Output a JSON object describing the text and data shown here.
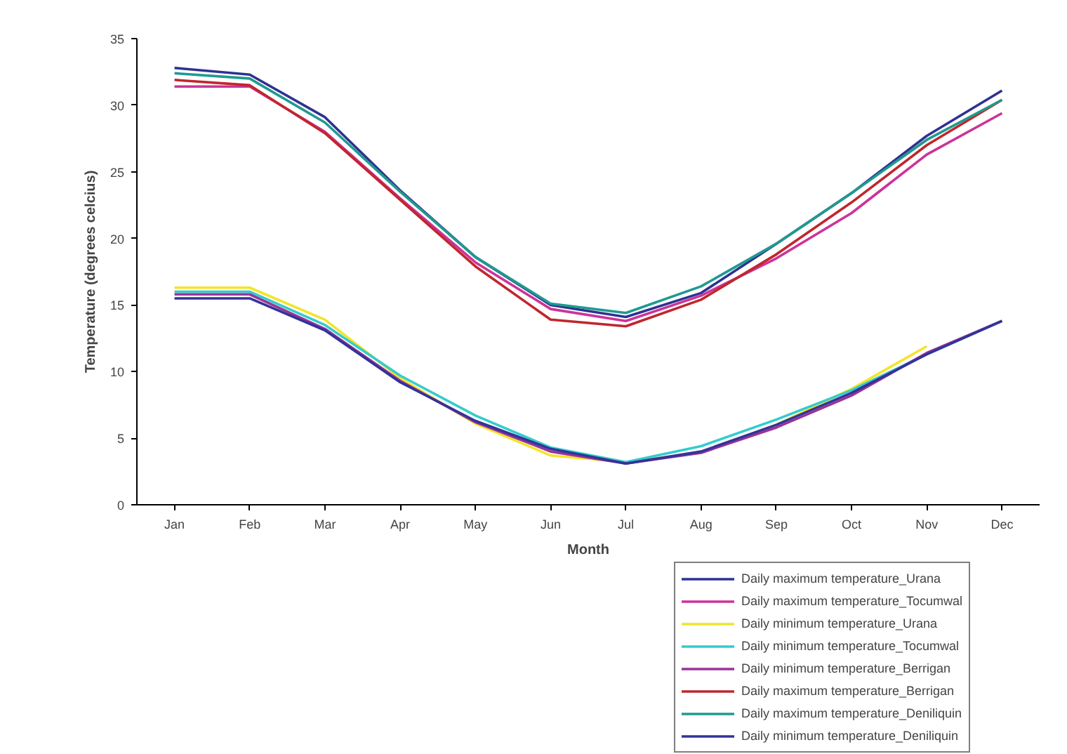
{
  "chart_data": {
    "type": "line",
    "xlabel": "Month",
    "ylabel": "Temperature (degrees celcius)",
    "categories": [
      "Jan",
      "Feb",
      "Mar",
      "Apr",
      "May",
      "Jun",
      "Jul",
      "Aug",
      "Sep",
      "Oct",
      "Nov",
      "Dec"
    ],
    "ylim": [
      0,
      35
    ],
    "yticks": [
      0,
      5,
      10,
      15,
      20,
      25,
      30,
      35
    ],
    "grid": false,
    "legend": "bottom right",
    "marker": "none",
    "line_style": "solid",
    "series": [
      {
        "name": "Daily maximum temperature_Urana",
        "color": "#2e3192",
        "values": [
          32.8,
          32.3,
          29.1,
          23.6,
          18.6,
          15.0,
          14.1,
          15.9,
          19.6,
          23.4,
          27.7,
          31.1
        ]
      },
      {
        "name": "Daily maximum temperature_Tocumwal",
        "color": "#cc3399",
        "values": [
          31.4,
          31.4,
          28.0,
          23.0,
          18.2,
          14.7,
          13.8,
          15.7,
          18.5,
          21.9,
          26.3,
          29.4
        ]
      },
      {
        "name": "Daily minimum temperature_Urana",
        "color": "#f2e52a",
        "values": [
          16.3,
          16.3,
          13.9,
          9.5,
          6.1,
          3.7,
          3.2,
          3.9,
          6.0,
          8.7,
          11.9,
          null
        ]
      },
      {
        "name": "Daily minimum temperature_Tocumwal",
        "color": "#33cccc",
        "values": [
          16.0,
          16.0,
          13.5,
          9.7,
          6.7,
          4.3,
          3.2,
          4.4,
          6.4,
          8.6,
          11.3,
          13.8
        ]
      },
      {
        "name": "Daily minimum temperature_Berrigan",
        "color": "#993399",
        "values": [
          15.8,
          15.8,
          13.2,
          9.3,
          6.2,
          4.0,
          3.1,
          3.9,
          5.8,
          8.2,
          11.4,
          13.8
        ]
      },
      {
        "name": "Daily maximum temperature_Berrigan",
        "color": "#c0262d",
        "values": [
          31.9,
          31.5,
          27.9,
          22.9,
          17.9,
          13.9,
          13.4,
          15.4,
          18.8,
          22.7,
          27.0,
          30.4
        ]
      },
      {
        "name": "Daily maximum temperature_Deniliquin",
        "color": "#1f9a8f",
        "values": [
          32.4,
          32.0,
          28.7,
          23.5,
          18.6,
          15.1,
          14.4,
          16.4,
          19.6,
          23.4,
          27.4,
          30.4
        ]
      },
      {
        "name": "Daily minimum temperature_Deniliquin",
        "color": "#333399",
        "values": [
          15.5,
          15.5,
          13.1,
          9.2,
          6.3,
          4.2,
          3.1,
          4.0,
          6.0,
          8.4,
          11.3,
          13.8
        ]
      }
    ]
  }
}
